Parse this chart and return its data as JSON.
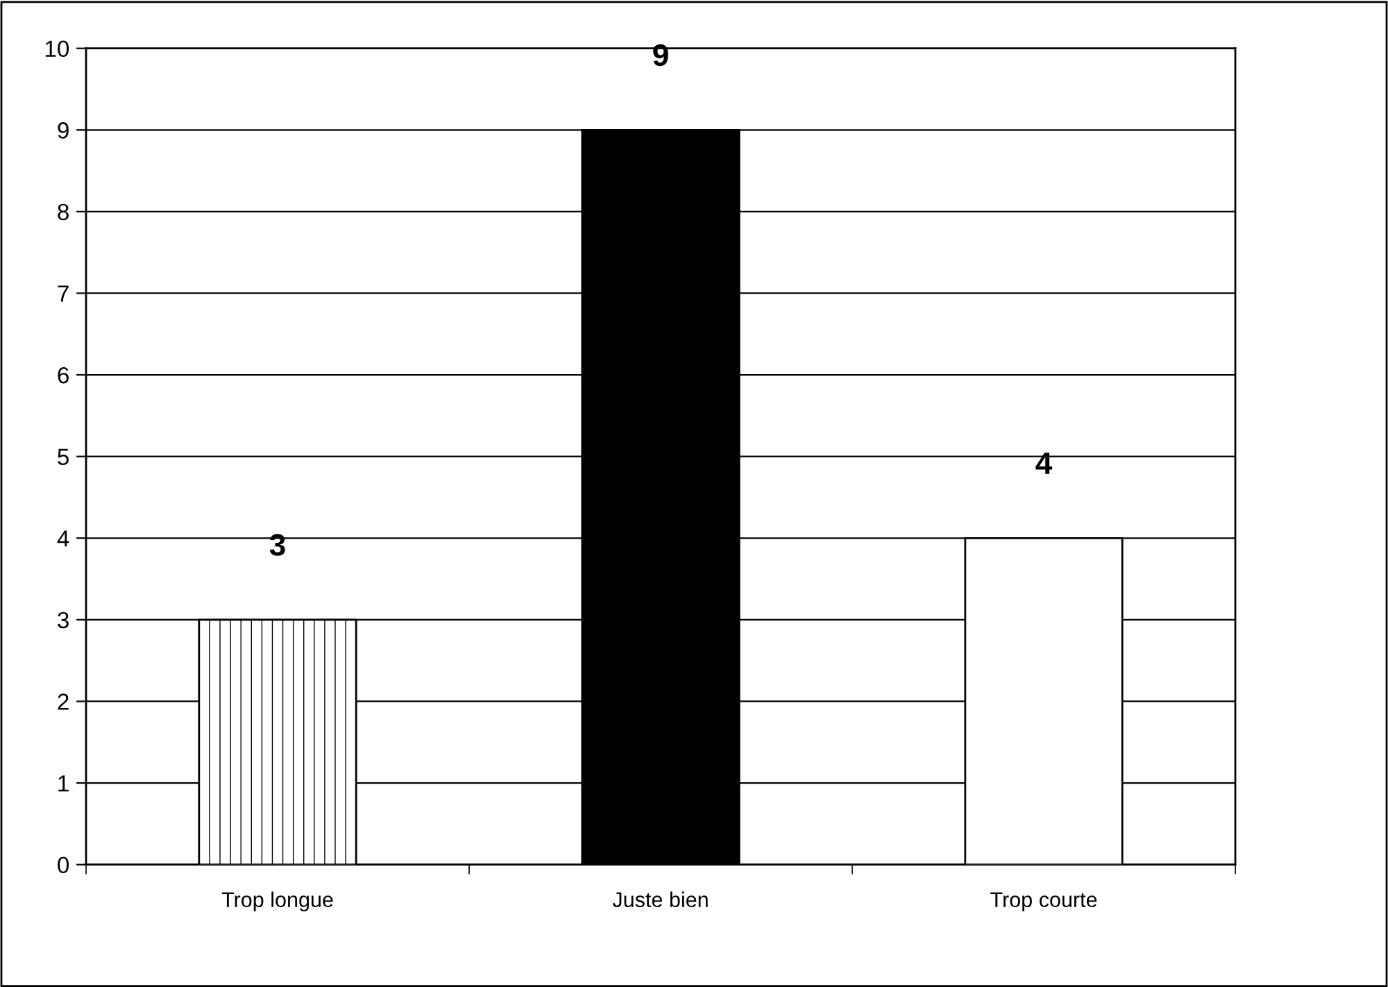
{
  "chart_data": {
    "type": "bar",
    "categories": [
      "Trop longue",
      "Juste bien",
      "Trop courte"
    ],
    "values": [
      3,
      9,
      4
    ],
    "colors": [
      "#ffffff",
      "#000000",
      "#ffffff"
    ],
    "ylim": [
      0,
      10
    ],
    "yticks": [
      0,
      1,
      2,
      3,
      4,
      5,
      6,
      7,
      8,
      9,
      10
    ],
    "grid": "y",
    "data_labels": true
  }
}
